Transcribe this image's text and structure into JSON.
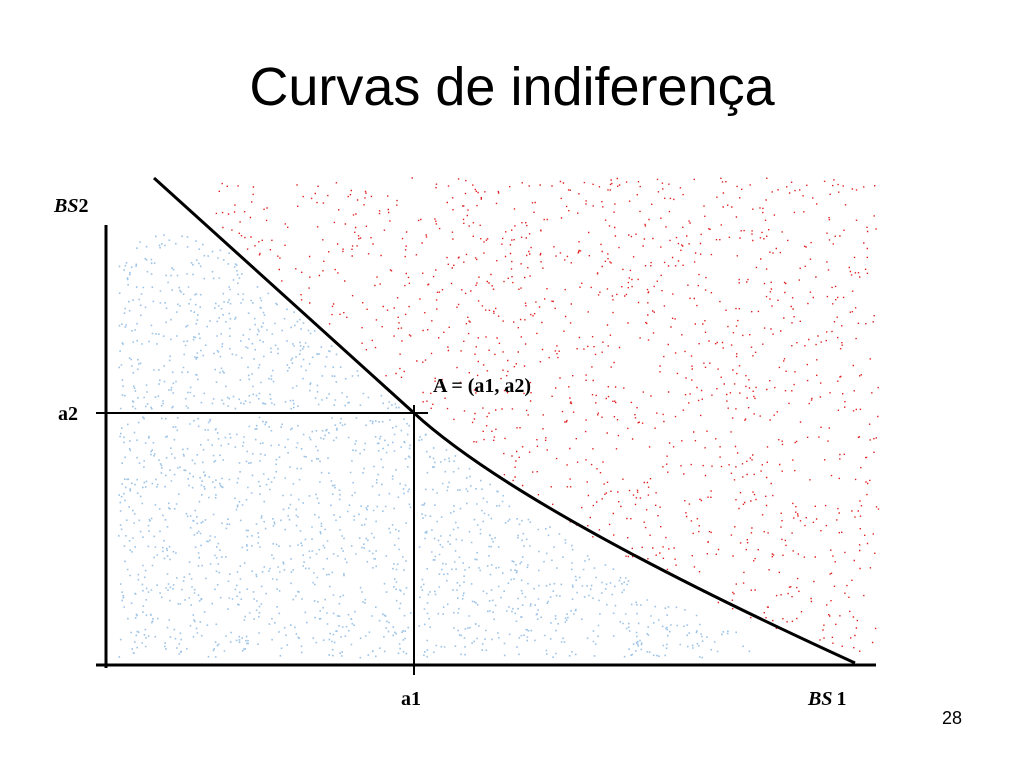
{
  "slide": {
    "title": "Curvas de indiferença",
    "page_number": "28"
  },
  "diagram": {
    "y_axis_label_italic": "BS",
    "y_axis_label_num": "2",
    "x_axis_label_italic": "BS",
    "x_axis_label_num": "1",
    "point_label": "A = (a1, a2)",
    "x_tick_label": "a1",
    "y_tick_label": "a2",
    "colors": {
      "below_curve_dots": "#9dc3e6",
      "above_curve_dots": "#e02020",
      "lines": "#000000"
    }
  }
}
